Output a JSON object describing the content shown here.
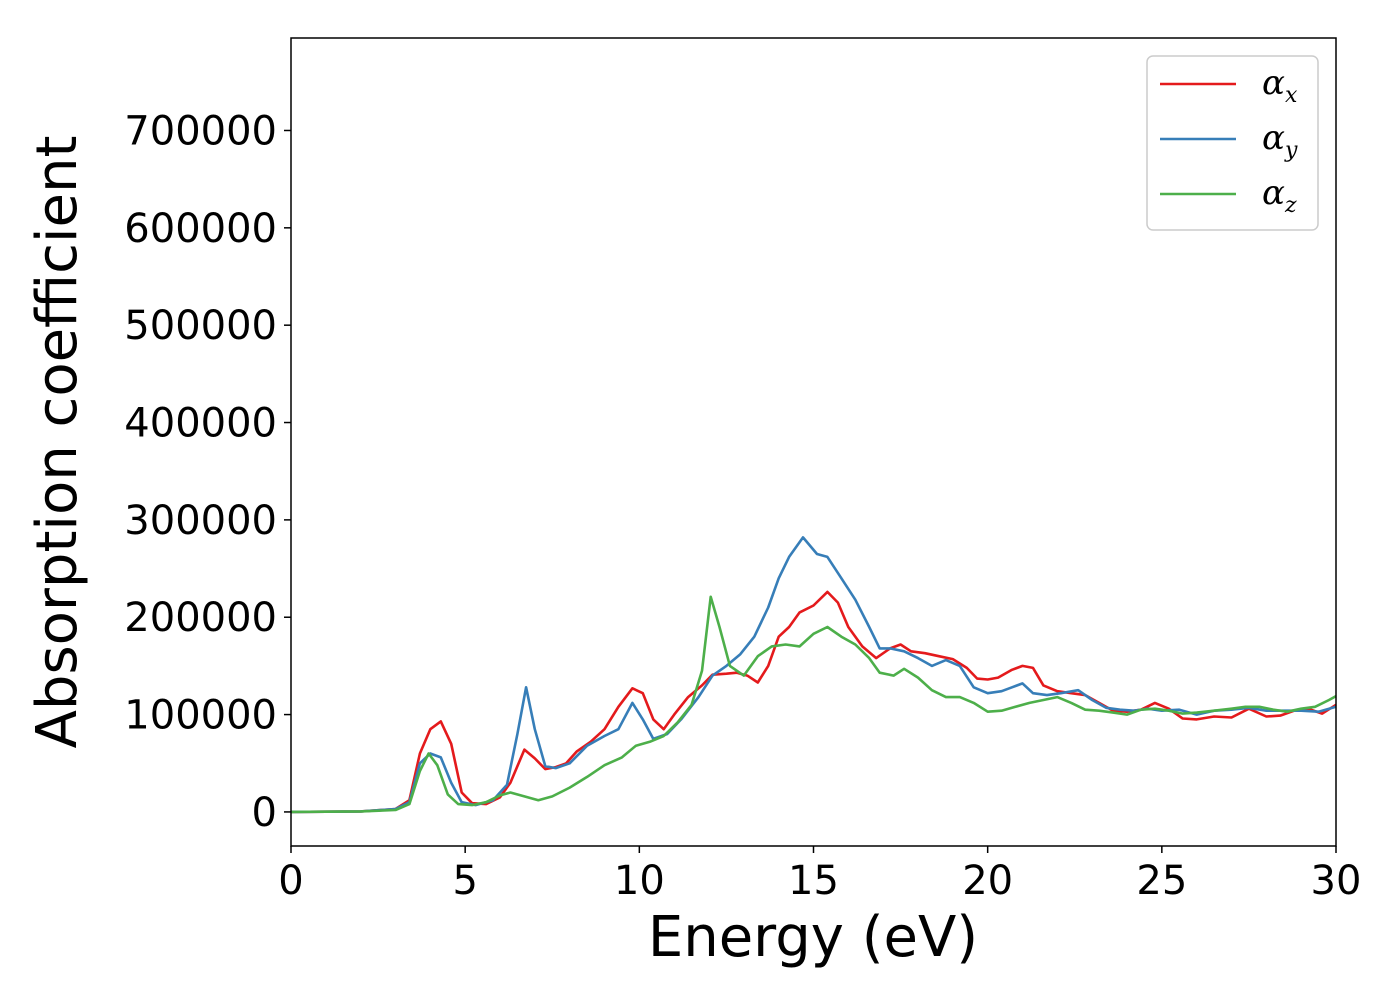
{
  "chart_data": {
    "type": "line",
    "xlabel": "Energy (eV)",
    "ylabel": "Absorption coefficient",
    "xlim": [
      0,
      30
    ],
    "ylim": [
      -35000,
      795000
    ],
    "xticks": [
      0,
      5,
      10,
      15,
      20,
      25,
      30
    ],
    "yticks": [
      0,
      100000,
      200000,
      300000,
      400000,
      500000,
      600000,
      700000
    ],
    "grid": false,
    "legend_position": "top-right",
    "series": [
      {
        "name": "αx",
        "legend_symbol": "α",
        "legend_subscript": "x",
        "color": "#e41a1c",
        "points": [
          [
            0,
            0
          ],
          [
            2,
            500
          ],
          [
            3,
            3000
          ],
          [
            3.4,
            12000
          ],
          [
            3.7,
            60000
          ],
          [
            4,
            85000
          ],
          [
            4.3,
            93000
          ],
          [
            4.6,
            70000
          ],
          [
            4.9,
            20000
          ],
          [
            5.2,
            9000
          ],
          [
            5.6,
            8000
          ],
          [
            6,
            15000
          ],
          [
            6.3,
            30000
          ],
          [
            6.7,
            64000
          ],
          [
            7,
            55000
          ],
          [
            7.3,
            44000
          ],
          [
            7.6,
            46000
          ],
          [
            7.9,
            50000
          ],
          [
            8.2,
            62000
          ],
          [
            8.6,
            72000
          ],
          [
            9,
            85000
          ],
          [
            9.4,
            108000
          ],
          [
            9.8,
            127000
          ],
          [
            10.1,
            122000
          ],
          [
            10.4,
            95000
          ],
          [
            10.7,
            85000
          ],
          [
            11,
            100000
          ],
          [
            11.4,
            118000
          ],
          [
            11.8,
            130000
          ],
          [
            12.1,
            141000
          ],
          [
            12.5,
            142000
          ],
          [
            12.8,
            143000
          ],
          [
            13.1,
            140000
          ],
          [
            13.4,
            133000
          ],
          [
            13.7,
            150000
          ],
          [
            14,
            180000
          ],
          [
            14.3,
            190000
          ],
          [
            14.6,
            205000
          ],
          [
            15,
            212000
          ],
          [
            15.4,
            226000
          ],
          [
            15.7,
            215000
          ],
          [
            16,
            190000
          ],
          [
            16.4,
            170000
          ],
          [
            16.8,
            158000
          ],
          [
            17.2,
            168000
          ],
          [
            17.5,
            172000
          ],
          [
            17.8,
            165000
          ],
          [
            18.2,
            163000
          ],
          [
            18.6,
            160000
          ],
          [
            19,
            157000
          ],
          [
            19.4,
            148000
          ],
          [
            19.7,
            137000
          ],
          [
            20,
            136000
          ],
          [
            20.3,
            138000
          ],
          [
            20.7,
            146000
          ],
          [
            21,
            150000
          ],
          [
            21.3,
            148000
          ],
          [
            21.6,
            130000
          ],
          [
            22,
            124000
          ],
          [
            22.4,
            122000
          ],
          [
            22.8,
            120000
          ],
          [
            23.2,
            112000
          ],
          [
            23.6,
            104000
          ],
          [
            24,
            103000
          ],
          [
            24.4,
            105000
          ],
          [
            24.8,
            112000
          ],
          [
            25.2,
            106000
          ],
          [
            25.6,
            96000
          ],
          [
            26,
            95000
          ],
          [
            26.5,
            98000
          ],
          [
            27,
            97000
          ],
          [
            27.5,
            106000
          ],
          [
            28,
            98000
          ],
          [
            28.4,
            99000
          ],
          [
            28.8,
            104000
          ],
          [
            29.2,
            106000
          ],
          [
            29.6,
            101000
          ],
          [
            30,
            110000
          ]
        ]
      },
      {
        "name": "αy",
        "legend_symbol": "α",
        "legend_subscript": "y",
        "color": "#377eb8",
        "points": [
          [
            0,
            0
          ],
          [
            2,
            500
          ],
          [
            3,
            3000
          ],
          [
            3.4,
            10000
          ],
          [
            3.7,
            50000
          ],
          [
            4,
            60000
          ],
          [
            4.3,
            56000
          ],
          [
            4.6,
            30000
          ],
          [
            4.9,
            10000
          ],
          [
            5.3,
            7000
          ],
          [
            5.8,
            12000
          ],
          [
            6.2,
            28000
          ],
          [
            6.5,
            80000
          ],
          [
            6.75,
            128000
          ],
          [
            7,
            85000
          ],
          [
            7.3,
            47000
          ],
          [
            7.6,
            45000
          ],
          [
            8,
            50000
          ],
          [
            8.5,
            68000
          ],
          [
            9,
            78000
          ],
          [
            9.4,
            85000
          ],
          [
            9.8,
            112000
          ],
          [
            10.1,
            95000
          ],
          [
            10.4,
            75000
          ],
          [
            10.8,
            80000
          ],
          [
            11.2,
            95000
          ],
          [
            11.7,
            118000
          ],
          [
            12.1,
            140000
          ],
          [
            12.5,
            150000
          ],
          [
            12.9,
            162000
          ],
          [
            13.3,
            180000
          ],
          [
            13.7,
            210000
          ],
          [
            14,
            240000
          ],
          [
            14.3,
            262000
          ],
          [
            14.7,
            282000
          ],
          [
            15.1,
            265000
          ],
          [
            15.4,
            262000
          ],
          [
            15.8,
            240000
          ],
          [
            16.2,
            218000
          ],
          [
            16.6,
            190000
          ],
          [
            16.9,
            168000
          ],
          [
            17.2,
            168000
          ],
          [
            17.6,
            165000
          ],
          [
            18,
            158000
          ],
          [
            18.4,
            150000
          ],
          [
            18.8,
            156000
          ],
          [
            19.2,
            150000
          ],
          [
            19.6,
            128000
          ],
          [
            20,
            122000
          ],
          [
            20.4,
            124000
          ],
          [
            20.7,
            128000
          ],
          [
            21,
            132000
          ],
          [
            21.3,
            122000
          ],
          [
            21.7,
            120000
          ],
          [
            22.1,
            122000
          ],
          [
            22.6,
            125000
          ],
          [
            23,
            115000
          ],
          [
            23.4,
            107000
          ],
          [
            23.8,
            105000
          ],
          [
            24.2,
            104000
          ],
          [
            24.6,
            106000
          ],
          [
            25,
            104000
          ],
          [
            25.5,
            105000
          ],
          [
            26,
            100000
          ],
          [
            26.5,
            104000
          ],
          [
            27,
            105000
          ],
          [
            27.5,
            107000
          ],
          [
            28,
            104000
          ],
          [
            28.5,
            104000
          ],
          [
            29,
            104000
          ],
          [
            29.5,
            103000
          ],
          [
            30,
            108000
          ]
        ]
      },
      {
        "name": "αz",
        "legend_symbol": "α",
        "legend_subscript": "z",
        "color": "#4daf4a",
        "points": [
          [
            0,
            0
          ],
          [
            2,
            500
          ],
          [
            3,
            2000
          ],
          [
            3.4,
            8000
          ],
          [
            3.7,
            42000
          ],
          [
            3.95,
            60000
          ],
          [
            4.2,
            48000
          ],
          [
            4.5,
            18000
          ],
          [
            4.8,
            8000
          ],
          [
            5.2,
            7000
          ],
          [
            5.6,
            10000
          ],
          [
            6,
            17000
          ],
          [
            6.3,
            20000
          ],
          [
            6.7,
            16000
          ],
          [
            7.1,
            12000
          ],
          [
            7.5,
            16000
          ],
          [
            8,
            25000
          ],
          [
            8.5,
            36000
          ],
          [
            9,
            48000
          ],
          [
            9.5,
            56000
          ],
          [
            9.9,
            68000
          ],
          [
            10.3,
            72000
          ],
          [
            10.7,
            78000
          ],
          [
            11.1,
            92000
          ],
          [
            11.5,
            110000
          ],
          [
            11.8,
            145000
          ],
          [
            12.05,
            221000
          ],
          [
            12.3,
            190000
          ],
          [
            12.6,
            150000
          ],
          [
            13,
            140000
          ],
          [
            13.4,
            160000
          ],
          [
            13.8,
            170000
          ],
          [
            14.2,
            172000
          ],
          [
            14.6,
            170000
          ],
          [
            15,
            183000
          ],
          [
            15.4,
            190000
          ],
          [
            15.8,
            180000
          ],
          [
            16.2,
            172000
          ],
          [
            16.6,
            158000
          ],
          [
            16.9,
            143000
          ],
          [
            17.3,
            140000
          ],
          [
            17.6,
            147000
          ],
          [
            18,
            138000
          ],
          [
            18.4,
            125000
          ],
          [
            18.8,
            118000
          ],
          [
            19.2,
            118000
          ],
          [
            19.6,
            112000
          ],
          [
            20,
            103000
          ],
          [
            20.4,
            104000
          ],
          [
            20.8,
            108000
          ],
          [
            21.2,
            112000
          ],
          [
            21.6,
            115000
          ],
          [
            22,
            118000
          ],
          [
            22.4,
            112000
          ],
          [
            22.8,
            105000
          ],
          [
            23.2,
            104000
          ],
          [
            23.6,
            102000
          ],
          [
            24,
            100000
          ],
          [
            24.4,
            105000
          ],
          [
            24.8,
            106000
          ],
          [
            25.2,
            104000
          ],
          [
            25.6,
            101000
          ],
          [
            26,
            102000
          ],
          [
            26.5,
            104000
          ],
          [
            27,
            106000
          ],
          [
            27.4,
            108000
          ],
          [
            27.8,
            108000
          ],
          [
            28.2,
            105000
          ],
          [
            28.6,
            103000
          ],
          [
            29,
            106000
          ],
          [
            29.4,
            108000
          ],
          [
            29.8,
            115000
          ],
          [
            30,
            119000
          ]
        ]
      }
    ]
  }
}
